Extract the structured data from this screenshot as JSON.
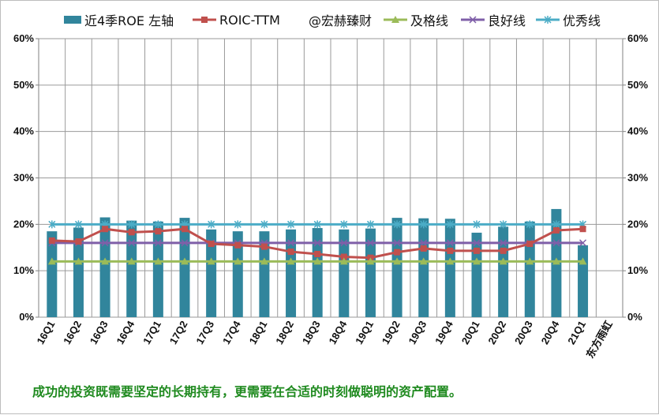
{
  "legend": {
    "items": [
      {
        "label": "近4季ROE 左轴",
        "kind": "bar",
        "color": "#31859c"
      },
      {
        "label": "ROIC-TTM",
        "kind": "line-square",
        "color": "#c0504d"
      },
      {
        "label": "@宏赫臻财",
        "kind": "none",
        "color": "#ffffff"
      },
      {
        "label": "及格线",
        "kind": "line-triangle",
        "color": "#9bbb59"
      },
      {
        "label": "良好线",
        "kind": "line-x",
        "color": "#7f5fa8"
      },
      {
        "label": "优秀线",
        "kind": "line-star",
        "color": "#4bacc6"
      }
    ]
  },
  "footer": {
    "text": "成功的投资既需要坚定的长期持有，更需要在合适的时刻做聪明的资产配置。"
  },
  "chart_data": {
    "type": "bar",
    "categories": [
      "16Q1",
      "16Q2",
      "16Q3",
      "16Q4",
      "17Q1",
      "17Q2",
      "17Q3",
      "17Q4",
      "18Q1",
      "18Q2",
      "18Q3",
      "18Q4",
      "19Q1",
      "19Q2",
      "19Q3",
      "19Q4",
      "20Q1",
      "20Q2",
      "20Q3",
      "20Q4",
      "21Q1",
      "东方雨虹"
    ],
    "yticks_left": [
      "0%",
      "10%",
      "20%",
      "30%",
      "40%",
      "50%",
      "60%"
    ],
    "yticks_right": [
      "0%",
      "10%",
      "20%",
      "30%",
      "40%",
      "50%",
      "60%"
    ],
    "ylim": [
      0,
      60
    ],
    "grid": true,
    "series": [
      {
        "name": "近4季ROE 左轴",
        "type": "bar",
        "color": "#31859c",
        "values": [
          18.5,
          19.3,
          21.5,
          20.8,
          20.6,
          21.4,
          18.9,
          18.5,
          18.5,
          18.9,
          19.2,
          18.9,
          19.1,
          21.4,
          21.3,
          21.2,
          18.2,
          19.5,
          20.6,
          23.3,
          15.5,
          null
        ]
      },
      {
        "name": "ROIC-TTM",
        "type": "line",
        "marker": "square",
        "color": "#c0504d",
        "values": [
          16.5,
          16.3,
          19.0,
          18.3,
          18.5,
          19.0,
          15.8,
          15.5,
          15.2,
          14.1,
          13.6,
          13.0,
          12.8,
          14.0,
          14.8,
          14.3,
          14.3,
          14.3,
          15.8,
          18.7,
          19.0,
          null
        ]
      },
      {
        "name": "及格线",
        "type": "line",
        "marker": "triangle",
        "color": "#9bbb59",
        "values": [
          12,
          12,
          12,
          12,
          12,
          12,
          12,
          12,
          12,
          12,
          12,
          12,
          12,
          12,
          12,
          12,
          12,
          12,
          12,
          12,
          12,
          null
        ]
      },
      {
        "name": "良好线",
        "type": "line",
        "marker": "x",
        "color": "#7f5fa8",
        "values": [
          16,
          16,
          16,
          16,
          16,
          16,
          16,
          16,
          16,
          16,
          16,
          16,
          16,
          16,
          16,
          16,
          16,
          16,
          16,
          16,
          16,
          null
        ]
      },
      {
        "name": "优秀线",
        "type": "line",
        "marker": "star",
        "color": "#4bacc6",
        "values": [
          20,
          20,
          20,
          20,
          20,
          20,
          20,
          20,
          20,
          20,
          20,
          20,
          20,
          20,
          20,
          20,
          20,
          20,
          20,
          20,
          20,
          null
        ]
      }
    ]
  }
}
